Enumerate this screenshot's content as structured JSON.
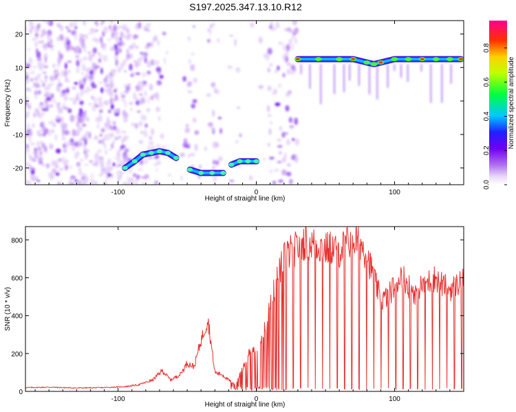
{
  "title": "S197.2025.347.13.10.R12",
  "spectrogram": {
    "type": "heatmap",
    "xlabel": "Height of straight line (km)",
    "ylabel": "Frequency (Hz)",
    "xlim": [
      -167,
      150
    ],
    "ylim": [
      -25,
      24
    ],
    "xticks": [
      -100,
      0,
      100
    ],
    "yticks": [
      20,
      10,
      0,
      -10,
      -20
    ],
    "colorbar": {
      "label": "Normalized spectral amplitude",
      "range": [
        0,
        0.96
      ],
      "ticks": [
        "0.0",
        "0.2",
        "0.4",
        "0.6",
        "0.8"
      ]
    },
    "ridge_segments": [
      {
        "x": [
          -95,
          -88,
          -82,
          -76,
          -70,
          -64,
          -58
        ],
        "freq": [
          -20,
          -18,
          -16,
          -15.5,
          -15,
          -15.5,
          -17
        ]
      },
      {
        "x": [
          -48,
          -40,
          -32,
          -24
        ],
        "freq": [
          -20.5,
          -21.5,
          -21.5,
          -21.5
        ]
      },
      {
        "x": [
          -18,
          -12,
          -6,
          0
        ],
        "freq": [
          -19,
          -18,
          -18,
          -18
        ]
      },
      {
        "x": [
          30,
          45,
          60,
          70,
          80,
          85,
          90,
          100,
          110,
          120,
          130,
          140,
          148
        ],
        "freq": [
          12.5,
          12.5,
          12.5,
          12.5,
          11.5,
          11,
          11.5,
          12.5,
          12.5,
          12.5,
          12.5,
          12.5,
          12.5
        ]
      }
    ]
  },
  "snr": {
    "type": "line",
    "xlabel": "Height of straight line (km)",
    "ylabel": "SNR (10 * v/v)",
    "xlim": [
      -167,
      150
    ],
    "ylim": [
      0,
      870
    ],
    "xticks": [
      -100,
      0,
      100
    ],
    "yticks": [
      0,
      200,
      400,
      600,
      800
    ],
    "color": "#e8302e",
    "x": [
      -167,
      -150,
      -130,
      -110,
      -95,
      -85,
      -75,
      -68,
      -62,
      -55,
      -50,
      -45,
      -40,
      -35,
      -30,
      -25,
      -20,
      -15,
      -10,
      -5,
      0,
      5,
      10,
      15,
      20,
      25,
      30,
      35,
      40,
      45,
      50,
      55,
      60,
      65,
      70,
      75,
      80,
      85,
      90,
      95,
      100,
      105,
      110,
      115,
      120,
      125,
      130,
      135,
      140,
      145,
      150
    ],
    "y": [
      20,
      22,
      18,
      20,
      25,
      35,
      60,
      110,
      60,
      90,
      150,
      130,
      270,
      380,
      100,
      90,
      60,
      40,
      120,
      210,
      230,
      300,
      450,
      600,
      700,
      740,
      760,
      790,
      780,
      770,
      750,
      760,
      740,
      780,
      800,
      790,
      720,
      600,
      480,
      500,
      560,
      620,
      560,
      520,
      560,
      580,
      600,
      560,
      540,
      560,
      620
    ]
  }
}
